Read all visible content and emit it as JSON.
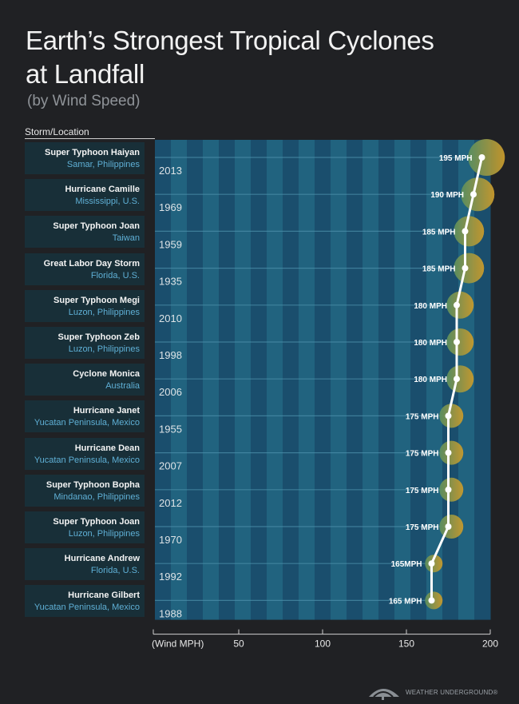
{
  "title": "Earth’s Strongest Tropical Cyclones at Landfall",
  "subtitle": "(by Wind Speed)",
  "column_header": "Storm/Location",
  "brand": "WEATHER UNDERGROUND®",
  "colors": {
    "background": "#202124",
    "band_dark": "#1a4e6d",
    "band_light": "#21637f",
    "bubble_green": "#5b8f5f",
    "bubble_gold": "#c99a2c",
    "line": "#ffffff",
    "location_text": "#5fb0d6"
  },
  "chart_data": {
    "type": "line",
    "xlabel": "(Wind MPH)",
    "xlim": [
      0,
      200
    ],
    "xticks": [
      50,
      100,
      150,
      200
    ],
    "ylabel": "Storm/Location",
    "storms": [
      {
        "name": "Super Typhoon Haiyan",
        "location": "Samar, Philippines",
        "year": "2013",
        "wind": 195,
        "label": "195 MPH"
      },
      {
        "name": "Hurricane Camille",
        "location": "Mississippi, U.S.",
        "year": "1969",
        "wind": 190,
        "label": "190 MPH"
      },
      {
        "name": "Super Typhoon Joan",
        "location": "Taiwan",
        "year": "1959",
        "wind": 185,
        "label": "185 MPH"
      },
      {
        "name": "Great Labor Day Storm",
        "location": "Florida, U.S.",
        "year": "1935",
        "wind": 185,
        "label": "185 MPH"
      },
      {
        "name": "Super Typhoon Megi",
        "location": "Luzon, Philippines",
        "year": "2010",
        "wind": 180,
        "label": "180 MPH"
      },
      {
        "name": "Super Typhoon Zeb",
        "location": "Luzon, Philippines",
        "year": "1998",
        "wind": 180,
        "label": "180 MPH"
      },
      {
        "name": "Cyclone Monica",
        "location": "Australia",
        "year": "2006",
        "wind": 180,
        "label": "180 MPH"
      },
      {
        "name": "Hurricane Janet",
        "location": "Yucatan Peninsula, Mexico",
        "year": "1955",
        "wind": 175,
        "label": "175 MPH"
      },
      {
        "name": "Hurricane Dean",
        "location": "Yucatan Peninsula, Mexico",
        "year": "2007",
        "wind": 175,
        "label": "175 MPH"
      },
      {
        "name": "Super Typhoon Bopha",
        "location": "Mindanao, Philippines",
        "year": "2012",
        "wind": 175,
        "label": "175 MPH"
      },
      {
        "name": "Super Typhoon Joan",
        "location": "Luzon, Philippines",
        "year": "1970",
        "wind": 175,
        "label": "175 MPH"
      },
      {
        "name": "Hurricane Andrew",
        "location": "Florida, U.S.",
        "year": "1992",
        "wind": 165,
        "label": "165MPH"
      },
      {
        "name": "Hurricane Gilbert",
        "location": "Yucatan Peninsula, Mexico",
        "year": "1988",
        "wind": 165,
        "label": "165 MPH"
      }
    ]
  }
}
